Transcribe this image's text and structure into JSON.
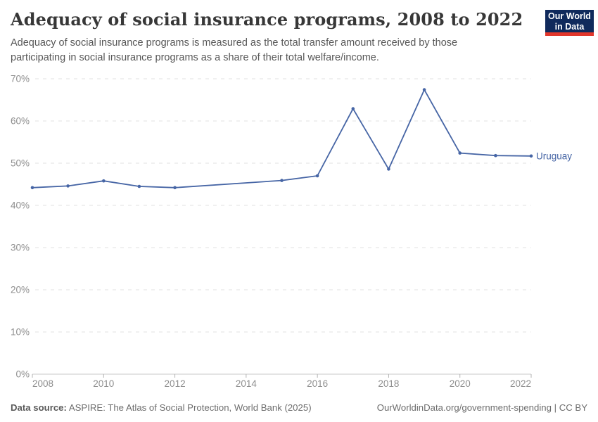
{
  "header": {
    "title": "Adequacy of social insurance programs, 2008 to 2022",
    "subtitle": "Adequacy of social insurance programs is measured as the total transfer amount received by those participating in social insurance programs as a share of their total welfare/income."
  },
  "logo": {
    "line1": "Our World",
    "line2": "in Data",
    "bg_color": "#102A5C",
    "accent_color": "#E2362B"
  },
  "chart_data": {
    "type": "line",
    "title": "Adequacy of social insurance programs, 2008 to 2022",
    "xlabel": "",
    "ylabel": "",
    "x_range": [
      2008,
      2022
    ],
    "x_ticks": [
      2008,
      2010,
      2012,
      2014,
      2016,
      2018,
      2020,
      2022
    ],
    "y_range": [
      0,
      70
    ],
    "y_ticks": [
      0,
      10,
      20,
      30,
      40,
      50,
      60,
      70
    ],
    "y_tick_suffix": "%",
    "grid": "horizontal-dashed",
    "legend_position": "end-of-line",
    "series": [
      {
        "name": "Uruguay",
        "color": "#4665A5",
        "points": [
          [
            2008,
            44.2
          ],
          [
            2009,
            44.6
          ],
          [
            2010,
            45.8
          ],
          [
            2011,
            44.5
          ],
          [
            2012,
            44.2
          ],
          [
            2015,
            45.9
          ],
          [
            2016,
            47.0
          ],
          [
            2017,
            62.9
          ],
          [
            2018,
            48.6
          ],
          [
            2019,
            67.4
          ],
          [
            2020,
            52.4
          ],
          [
            2021,
            51.8
          ],
          [
            2022,
            51.7
          ]
        ]
      }
    ]
  },
  "footer": {
    "source_label": "Data source:",
    "source_text": " ASPIRE: The Atlas of Social Protection, World Bank (2025)",
    "credit": "OurWorldinData.org/government-spending | CC BY"
  }
}
